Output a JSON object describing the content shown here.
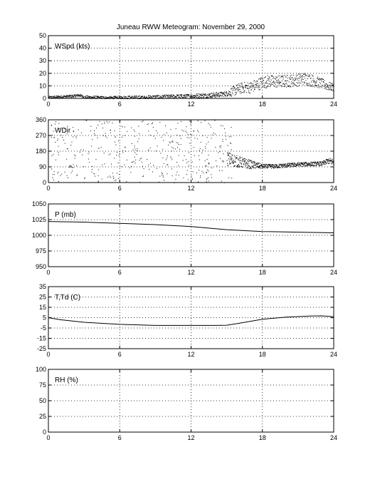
{
  "title": "Juneau RWW Meteogram:  November 29, 2000",
  "x_ticks": [
    0,
    6,
    12,
    18,
    24
  ],
  "chart_data": [
    {
      "type": "scatter",
      "label": "WSpd (kts)",
      "xlim": [
        0,
        24
      ],
      "ylim": [
        0,
        50
      ],
      "yticks": [
        0,
        10,
        20,
        30,
        40,
        50
      ],
      "grid": true,
      "profile": [
        [
          0,
          1
        ],
        [
          1,
          1.5
        ],
        [
          2,
          2
        ],
        [
          2.6,
          2.8
        ],
        [
          3,
          1.2
        ],
        [
          5,
          0.6
        ],
        [
          8,
          1
        ],
        [
          10,
          1.5
        ],
        [
          12,
          2
        ],
        [
          14,
          3
        ],
        [
          15,
          4
        ],
        [
          15.5,
          6
        ],
        [
          16,
          8
        ],
        [
          16.5,
          9
        ],
        [
          17,
          9
        ],
        [
          17.5,
          11
        ],
        [
          18,
          13
        ],
        [
          18.5,
          14
        ],
        [
          19,
          13.5
        ],
        [
          20,
          14
        ],
        [
          21,
          15
        ],
        [
          21.5,
          16
        ],
        [
          22,
          15
        ],
        [
          23,
          12
        ],
        [
          23.5,
          10
        ],
        [
          24,
          9
        ]
      ],
      "spread": [
        [
          0,
          1
        ],
        [
          15,
          2
        ],
        [
          15.5,
          4
        ],
        [
          18,
          5
        ],
        [
          22,
          5
        ],
        [
          24,
          3
        ]
      ]
    },
    {
      "type": "scatter",
      "label": "WDir",
      "xlim": [
        0,
        24
      ],
      "ylim": [
        0,
        360
      ],
      "yticks": [
        0,
        90,
        180,
        270,
        360
      ],
      "grid": true,
      "profile": [
        [
          15,
          140
        ],
        [
          16,
          120
        ],
        [
          17,
          105
        ],
        [
          18,
          95
        ],
        [
          19,
          95
        ],
        [
          20,
          100
        ],
        [
          21,
          105
        ],
        [
          22,
          108
        ],
        [
          23,
          110
        ],
        [
          23.5,
          125
        ],
        [
          24,
          120
        ]
      ],
      "spread": [
        [
          15,
          40
        ],
        [
          17,
          25
        ],
        [
          18,
          12
        ],
        [
          23,
          12
        ],
        [
          24,
          20
        ]
      ],
      "scatter_range": [
        0.2,
        15.4
      ]
    },
    {
      "type": "line",
      "label": "P (mb)",
      "xlim": [
        0,
        24
      ],
      "ylim": [
        950,
        1050
      ],
      "yticks": [
        950,
        975,
        1000,
        1025,
        1050
      ],
      "grid": true,
      "x": [
        0,
        3,
        6,
        9,
        12,
        15,
        18,
        21,
        24
      ],
      "y": [
        1022,
        1021,
        1019,
        1017,
        1014,
        1009,
        1006,
        1005,
        1004
      ]
    },
    {
      "type": "line",
      "label": "T,Td (C)",
      "xlim": [
        0,
        24
      ],
      "ylim": [
        -25,
        35
      ],
      "yticks": [
        -25,
        -15,
        -5,
        5,
        15,
        25,
        35
      ],
      "grid": true,
      "x": [
        0,
        1,
        3,
        6,
        9,
        12,
        14,
        15,
        16,
        17,
        18,
        20,
        22,
        23,
        24
      ],
      "y": [
        5,
        3,
        0.5,
        -1.5,
        -2.5,
        -2.5,
        -2.5,
        -2.3,
        -0.5,
        1.5,
        3.5,
        5.5,
        6.5,
        6.7,
        6
      ]
    },
    {
      "type": "line",
      "label": "RH (%)",
      "xlim": [
        0,
        24
      ],
      "ylim": [
        0,
        100
      ],
      "yticks": [
        0,
        25,
        50,
        75,
        100
      ],
      "grid": true,
      "x": [],
      "y": []
    }
  ]
}
